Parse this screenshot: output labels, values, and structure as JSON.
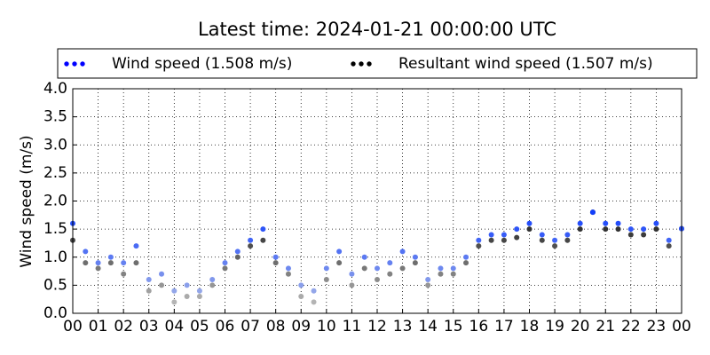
{
  "chart_data": {
    "type": "scatter",
    "title": "Latest time: 2024-01-21 00:00:00 UTC",
    "y_label": "Wind speed (m/s)",
    "x": [
      0,
      0.5,
      1,
      1.5,
      2,
      2.5,
      3,
      3.5,
      4,
      4.5,
      5,
      5.5,
      6,
      6.5,
      7,
      7.5,
      8,
      8.5,
      9,
      9.5,
      10,
      10.5,
      11,
      11.5,
      12,
      12.5,
      13,
      13.5,
      14,
      14.5,
      15,
      15.5,
      16,
      16.5,
      17,
      17.5,
      18,
      18.5,
      19,
      19.5,
      20,
      20.5,
      21,
      21.5,
      22,
      22.5,
      23,
      23.5,
      24
    ],
    "series": [
      {
        "name": "Wind speed (1.508 m/s)",
        "color": "#0000ff",
        "colormap": [
          "#b8c4e4",
          "#0030ff"
        ],
        "values": [
          1.6,
          1.1,
          0.9,
          1.0,
          0.9,
          1.2,
          0.6,
          0.7,
          0.4,
          0.5,
          0.4,
          0.6,
          0.9,
          1.1,
          1.3,
          1.5,
          1.0,
          0.8,
          0.5,
          0.4,
          0.8,
          1.1,
          0.7,
          1.0,
          0.8,
          0.9,
          1.1,
          1.0,
          0.6,
          0.8,
          0.8,
          1.0,
          1.3,
          1.4,
          1.4,
          1.5,
          1.6,
          1.4,
          1.3,
          1.4,
          1.6,
          1.8,
          1.6,
          1.6,
          1.5,
          1.5,
          1.6,
          1.3,
          1.508
        ]
      },
      {
        "name": "Resultant wind speed (1.507 m/s)",
        "color": "#000000",
        "colormap": [
          "#c8c8c8",
          "#000000"
        ],
        "values": [
          1.3,
          0.9,
          0.8,
          0.9,
          0.7,
          0.9,
          0.4,
          0.5,
          0.2,
          0.3,
          0.3,
          0.5,
          0.8,
          1.0,
          1.2,
          1.3,
          0.9,
          0.7,
          0.3,
          0.2,
          0.6,
          0.9,
          0.5,
          0.8,
          0.6,
          0.7,
          0.8,
          0.9,
          0.5,
          0.7,
          0.7,
          0.9,
          1.2,
          1.3,
          1.3,
          1.35,
          1.5,
          1.3,
          1.2,
          1.3,
          1.5,
          1.8,
          1.5,
          1.5,
          1.4,
          1.4,
          1.5,
          1.2,
          1.507
        ]
      }
    ],
    "xlim": [
      0,
      24
    ],
    "xticks": [
      {
        "value": 0,
        "label": "00"
      },
      {
        "value": 1,
        "label": "01"
      },
      {
        "value": 2,
        "label": "02"
      },
      {
        "value": 3,
        "label": "03"
      },
      {
        "value": 4,
        "label": "04"
      },
      {
        "value": 5,
        "label": "05"
      },
      {
        "value": 6,
        "label": "06"
      },
      {
        "value": 7,
        "label": "07"
      },
      {
        "value": 8,
        "label": "08"
      },
      {
        "value": 9,
        "label": "09"
      },
      {
        "value": 10,
        "label": "10"
      },
      {
        "value": 11,
        "label": "11"
      },
      {
        "value": 12,
        "label": "12"
      },
      {
        "value": 13,
        "label": "13"
      },
      {
        "value": 14,
        "label": "14"
      },
      {
        "value": 15,
        "label": "15"
      },
      {
        "value": 16,
        "label": "16"
      },
      {
        "value": 17,
        "label": "17"
      },
      {
        "value": 18,
        "label": "18"
      },
      {
        "value": 19,
        "label": "19"
      },
      {
        "value": 20,
        "label": "20"
      },
      {
        "value": 21,
        "label": "21"
      },
      {
        "value": 22,
        "label": "22"
      },
      {
        "value": 23,
        "label": "23"
      },
      {
        "value": 24,
        "label": "00"
      }
    ],
    "ylim": [
      0,
      4
    ],
    "yticks": [
      {
        "value": 0,
        "label": "0.0"
      },
      {
        "value": 0.5,
        "label": "0.5"
      },
      {
        "value": 1,
        "label": "1.0"
      },
      {
        "value": 1.5,
        "label": "1.5"
      },
      {
        "value": 2,
        "label": "2.0"
      },
      {
        "value": 2.5,
        "label": "2.5"
      },
      {
        "value": 3,
        "label": "3.0"
      },
      {
        "value": 3.5,
        "label": "3.5"
      },
      {
        "value": 4,
        "label": "4.0"
      }
    ],
    "grid": true,
    "legend": "top"
  }
}
